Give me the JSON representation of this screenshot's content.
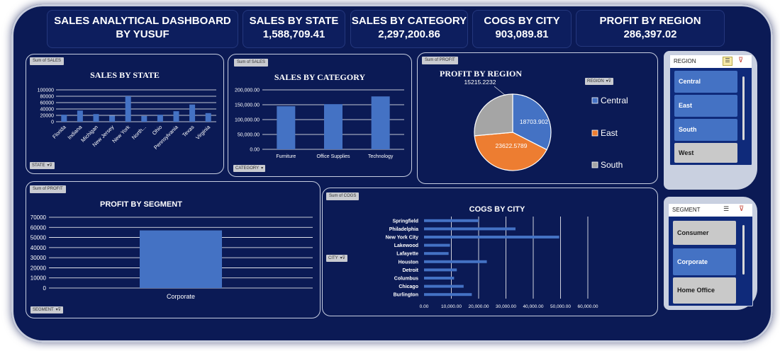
{
  "header": {
    "title_line1": "SALES ANALYTICAL DASHBOARD",
    "title_line2": "BY YUSUF",
    "kpis": [
      {
        "label": "SALES BY STATE",
        "value": "1,588,709.41"
      },
      {
        "label": "SALES BY CATEGORY",
        "value": "2,297,200.86"
      },
      {
        "label": "COGS BY CITY",
        "value": "903,089.81"
      },
      {
        "label": "PROFIT BY REGION",
        "value": "286,397.02"
      }
    ]
  },
  "panels": {
    "sales_by_state": {
      "tag": "Sum of SALES",
      "filter": "STATE"
    },
    "sales_by_category": {
      "tag": "Sum of SALES",
      "filter": "CATEGORY"
    },
    "profit_by_region": {
      "tag": "Sum of PROFIT",
      "filter": "REGION"
    },
    "profit_by_segment": {
      "tag": "Sum of PROFIT",
      "filter": "SEGMENT"
    },
    "cogs_by_city": {
      "tag": "Sum of COGS",
      "filter": "CITY"
    }
  },
  "slicers": {
    "region": {
      "title": "REGION",
      "items": [
        {
          "label": "Central",
          "selected": true
        },
        {
          "label": "East",
          "selected": true
        },
        {
          "label": "South",
          "selected": true
        },
        {
          "label": "West",
          "selected": false
        }
      ]
    },
    "segment": {
      "title": "SEGMENT",
      "items": [
        {
          "label": "Consumer",
          "selected": false
        },
        {
          "label": "Corporate",
          "selected": true
        },
        {
          "label": "Home Office",
          "selected": false
        }
      ]
    }
  },
  "colors": {
    "bar": "#4472c4",
    "east": "#ed7d31",
    "south": "#a5a5a5",
    "background": "#0b1a55"
  },
  "chart_data": [
    {
      "id": "state",
      "type": "bar",
      "title": "SALES BY STATE",
      "categories": [
        "Florida",
        "Indiana",
        "Michigan",
        "New Jersey",
        "New York",
        "North...",
        "Ohio",
        "Pennsylvania",
        "Texas",
        "Virginia"
      ],
      "values": [
        22000,
        35000,
        24000,
        19000,
        80000,
        18000,
        22000,
        33000,
        54000,
        27000
      ],
      "ylim": [
        0,
        100000
      ],
      "yticks": [
        "0",
        "20000",
        "40000",
        "60000",
        "80000",
        "100000"
      ]
    },
    {
      "id": "category",
      "type": "bar",
      "title": "SALES BY CATEGORY",
      "categories": [
        "Furniture",
        "Office Supplies",
        "Technology"
      ],
      "values": [
        145000,
        152000,
        178000
      ],
      "ylim": [
        0,
        200000
      ],
      "yticks": [
        "0.00",
        "50,000.00",
        "100,000.00",
        "150,000.00",
        "200,000.00"
      ]
    },
    {
      "id": "region",
      "type": "pie",
      "title": "PROFIT BY REGION",
      "labels": [
        "Central",
        "East",
        "South"
      ],
      "values": [
        18703.902,
        23622.5789,
        15215.2232
      ],
      "value_labels": [
        "18703.902",
        "23622.5789",
        "15215.2232"
      ],
      "legend": "right"
    },
    {
      "id": "segment",
      "type": "bar",
      "title": "PROFIT BY SEGMENT",
      "categories": [
        "Corporate"
      ],
      "values": [
        57000
      ],
      "ylim": [
        0,
        70000
      ],
      "yticks": [
        "0",
        "10000",
        "20000",
        "30000",
        "40000",
        "50000",
        "60000",
        "70000"
      ]
    },
    {
      "id": "city",
      "type": "bar",
      "orientation": "horizontal",
      "title": "COGS BY CITY",
      "categories": [
        "Springfield",
        "Philadelphia",
        "New York City",
        "Lakewood",
        "Lafayette",
        "Houston",
        "Detroit",
        "Columbus",
        "Chicago",
        "Burlington"
      ],
      "values": [
        20000,
        33500,
        49500,
        9500,
        9000,
        23000,
        12000,
        11000,
        14500,
        17500
      ],
      "xlim": [
        0,
        60000
      ],
      "xticks": [
        "0.00",
        "10,000.00",
        "20,000.00",
        "30,000.00",
        "40,000.00",
        "50,000.00",
        "60,000.00"
      ]
    }
  ]
}
